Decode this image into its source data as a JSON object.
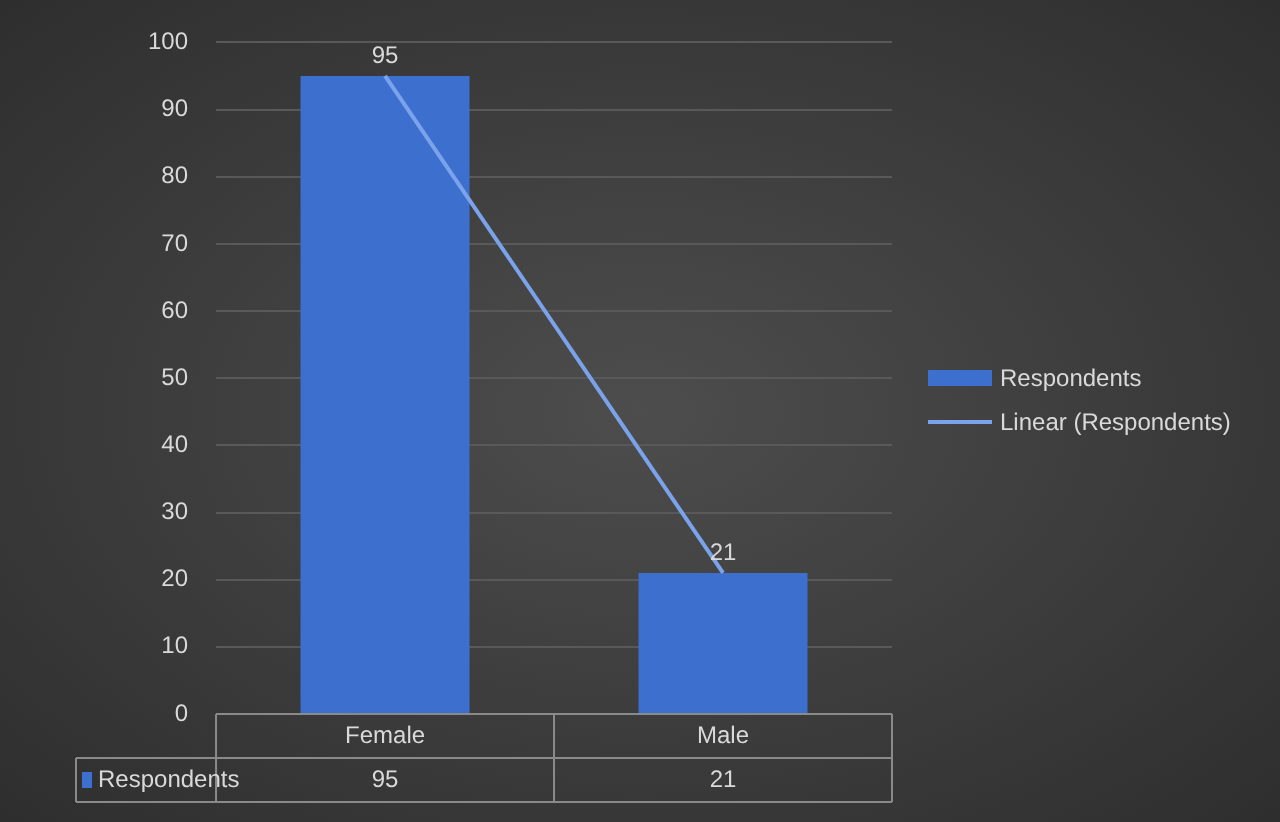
{
  "chart_data": {
    "type": "bar",
    "categories": [
      "Female",
      "Male"
    ],
    "series": [
      {
        "name": "Respondents",
        "color": "#3d6fcf",
        "values": [
          95,
          21
        ]
      },
      {
        "name": "Linear (Respondents)",
        "type": "line",
        "color": "#7aa3ec",
        "values": [
          95,
          21
        ]
      }
    ],
    "ylim": [
      0,
      100
    ],
    "yticks": [
      0,
      10,
      20,
      30,
      40,
      50,
      60,
      70,
      80,
      90,
      100
    ],
    "grid": "y",
    "legend": "right",
    "data_labels": true,
    "marker": "none"
  }
}
